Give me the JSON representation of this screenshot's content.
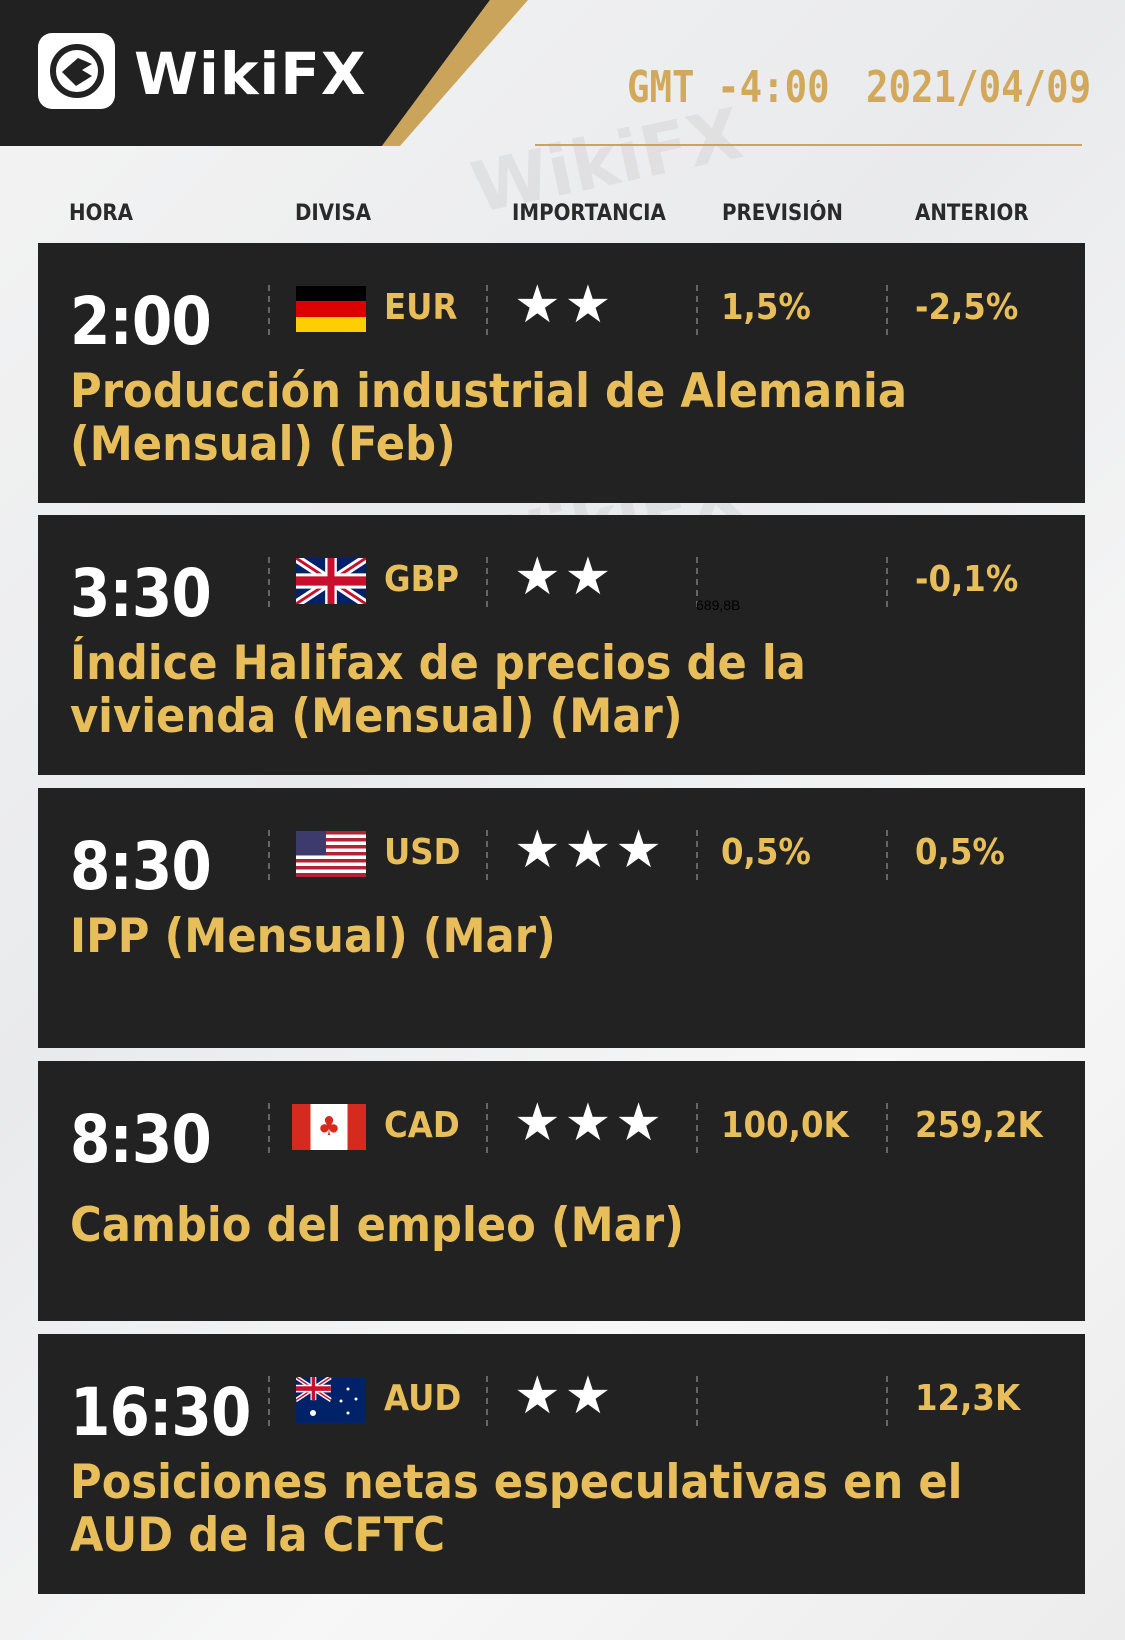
{
  "header": {
    "brand": "WikiFX",
    "timezone": "GMT -4:00",
    "date": "2021/04/09"
  },
  "columns": [
    "HORA",
    "DIVISA",
    "IMPORTANCIA",
    "PREVISIÓN",
    "ANTERIOR"
  ],
  "events": [
    {
      "time": "2:00",
      "currency": "EUR",
      "flag": "germany-flag",
      "stars": 2,
      "stars_text": "★★",
      "forecast": "1,5%",
      "previous": "-2,5%",
      "title": "Producción industrial de Alemania (Mensual) (Feb)"
    },
    {
      "time": "3:30",
      "currency": "GBP",
      "flag": "uk-flag",
      "stars": 2,
      "stars_text": "★★",
      "forecast": "",
      "previous": "-0,1%",
      "title": "Índice Halifax de precios de la vivienda (Mensual) (Mar)",
      "stray_text": "689,8B"
    },
    {
      "time": "8:30",
      "currency": "USD",
      "flag": "us-flag",
      "stars": 3,
      "stars_text": "★★★",
      "forecast": "0,5%",
      "previous": "0,5%",
      "title": "IPP (Mensual) (Mar)"
    },
    {
      "time": "8:30",
      "currency": "CAD",
      "flag": "canada-flag",
      "stars": 3,
      "stars_text": "★★★",
      "forecast": "100,0K",
      "previous": "259,2K",
      "title": "Cambio del empleo (Mar)"
    },
    {
      "time": "16:30",
      "currency": "AUD",
      "flag": "australia-flag",
      "stars": 2,
      "stars_text": "★★",
      "forecast": "",
      "previous": "12,3K",
      "title": "Posiciones netas especulativas en el AUD de la CFTC"
    }
  ],
  "colors": {
    "gold": "#e8be5a",
    "card": "#222222",
    "header": "#212121"
  }
}
